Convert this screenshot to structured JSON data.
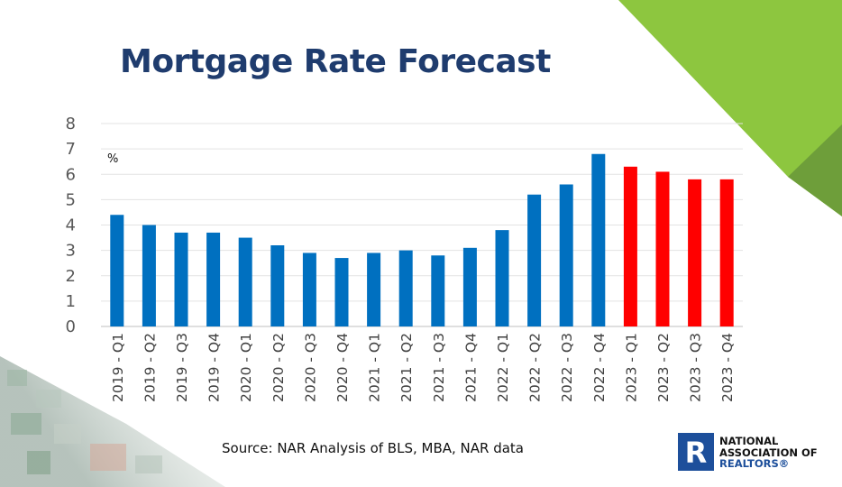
{
  "slide": {
    "title": "Mortgage Rate Forecast",
    "source": "Source: NAR Analysis of BLS, MBA, NAR data",
    "logo": {
      "line1": "NATIONAL",
      "line2": "ASSOCIATION OF",
      "line3": "REALTORS®",
      "mark": "R",
      "brand_color": "#1d4f9b"
    },
    "accent_colors": {
      "green_light": "#8dc63f",
      "green_dark": "#6e9e3a"
    }
  },
  "chart_data": {
    "type": "bar",
    "title": "Mortgage Rate Forecast",
    "unit_label": "%",
    "ylim": [
      0,
      8
    ],
    "yticks": [
      0,
      1,
      2,
      3,
      4,
      5,
      6,
      7,
      8
    ],
    "grid": true,
    "legend": "none",
    "categories": [
      "2019 - Q1",
      "2019 - Q2",
      "2019 - Q3",
      "2019 - Q4",
      "2020 - Q1",
      "2020 - Q2",
      "2020 - Q3",
      "2020 - Q4",
      "2021 - Q1",
      "2021 - Q2",
      "2021 - Q3",
      "2021 - Q4",
      "2022 - Q1",
      "2022 - Q2",
      "2022 - Q3",
      "2022 - Q4",
      "2023 - Q1",
      "2023 - Q2",
      "2023 - Q3",
      "2023 - Q4"
    ],
    "values": [
      4.4,
      4.0,
      3.7,
      3.7,
      3.5,
      3.2,
      2.9,
      2.7,
      2.9,
      3.0,
      2.8,
      3.1,
      3.8,
      5.2,
      5.6,
      6.8,
      6.3,
      6.1,
      5.8,
      5.8
    ],
    "bar_colors": [
      "#0070c0",
      "#0070c0",
      "#0070c0",
      "#0070c0",
      "#0070c0",
      "#0070c0",
      "#0070c0",
      "#0070c0",
      "#0070c0",
      "#0070c0",
      "#0070c0",
      "#0070c0",
      "#0070c0",
      "#0070c0",
      "#0070c0",
      "#0070c0",
      "#ff0000",
      "#ff0000",
      "#ff0000",
      "#ff0000"
    ]
  }
}
